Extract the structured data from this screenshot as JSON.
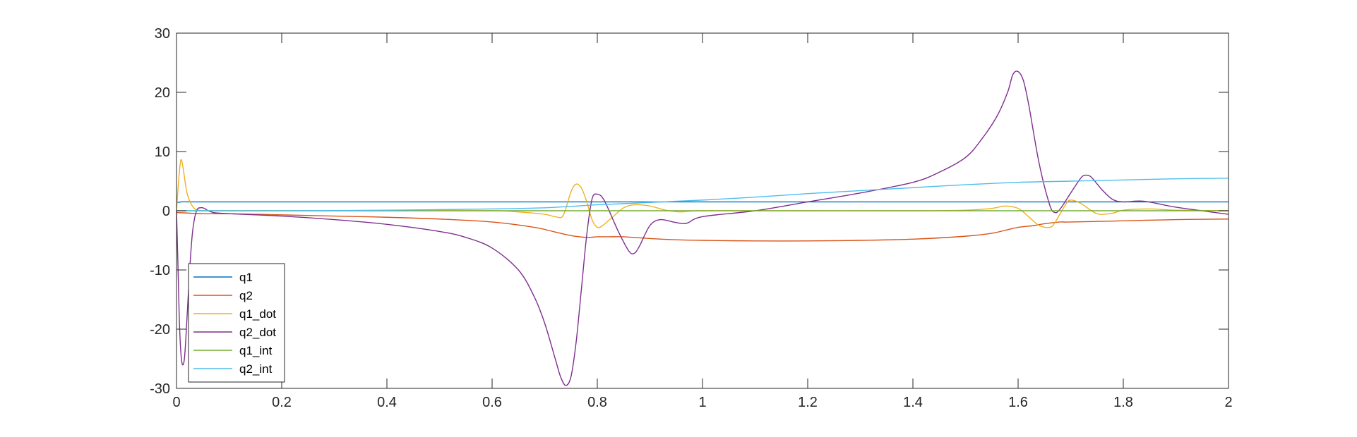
{
  "chart_data": {
    "type": "line",
    "title": "",
    "xlabel": "",
    "ylabel": "",
    "xlim": [
      0,
      2
    ],
    "ylim": [
      -30,
      30
    ],
    "x_ticks": [
      0,
      0.2,
      0.4,
      0.6,
      0.8,
      1,
      1.2,
      1.4,
      1.6,
      1.8,
      2
    ],
    "x_tick_labels": [
      "0",
      "0.2",
      "0.4",
      "0.6",
      "0.8",
      "1",
      "1.2",
      "1.4",
      "1.6",
      "1.8",
      "2"
    ],
    "y_ticks": [
      -30,
      -20,
      -10,
      0,
      10,
      20,
      30
    ],
    "y_tick_labels": [
      "-30",
      "-20",
      "-10",
      "0",
      "10",
      "20",
      "30"
    ],
    "grid": false,
    "box": true,
    "legend_position": "bottom-left",
    "series": [
      {
        "name": "q1",
        "color": "#0072BD",
        "x": [
          0,
          0.01,
          0.02,
          0.05,
          0.1,
          0.3,
          0.5,
          0.7,
          0.8,
          1.0,
          1.2,
          1.4,
          1.6,
          1.8,
          2.0
        ],
        "y": [
          1.4,
          1.5,
          1.5,
          1.5,
          1.5,
          1.5,
          1.5,
          1.5,
          1.5,
          1.5,
          1.5,
          1.5,
          1.5,
          1.5,
          1.5
        ]
      },
      {
        "name": "q2",
        "color": "#D95319",
        "x": [
          0,
          0.05,
          0.1,
          0.2,
          0.3,
          0.4,
          0.5,
          0.6,
          0.68,
          0.72,
          0.75,
          0.78,
          0.8,
          0.82,
          0.85,
          0.9,
          0.95,
          1.0,
          1.1,
          1.2,
          1.3,
          1.4,
          1.5,
          1.55,
          1.58,
          1.6,
          1.63,
          1.65,
          1.68,
          1.7,
          1.8,
          1.9,
          2.0
        ],
        "y": [
          -0.3,
          -0.5,
          -0.5,
          -0.7,
          -0.9,
          -1.1,
          -1.4,
          -1.9,
          -2.8,
          -3.6,
          -4.2,
          -4.5,
          -4.4,
          -4.4,
          -4.4,
          -4.7,
          -4.9,
          -5.0,
          -5.1,
          -5.1,
          -5.0,
          -4.8,
          -4.3,
          -3.8,
          -3.2,
          -2.8,
          -2.5,
          -2.2,
          -1.9,
          -1.9,
          -1.7,
          -1.5,
          -1.4
        ]
      },
      {
        "name": "q1_dot",
        "color": "#EDB120",
        "x": [
          0,
          0.004,
          0.008,
          0.012,
          0.02,
          0.03,
          0.04,
          0.05,
          0.07,
          0.1,
          0.2,
          0.4,
          0.6,
          0.65,
          0.7,
          0.72,
          0.735,
          0.75,
          0.76,
          0.77,
          0.78,
          0.79,
          0.8,
          0.81,
          0.83,
          0.85,
          0.87,
          0.9,
          0.93,
          0.96,
          1.0,
          1.2,
          1.4,
          1.5,
          1.55,
          1.575,
          1.6,
          1.62,
          1.64,
          1.66,
          1.67,
          1.69,
          1.7,
          1.72,
          1.75,
          1.78,
          1.8,
          1.85,
          1.9,
          2.0
        ],
        "y": [
          0,
          5.0,
          8.5,
          7.5,
          3.0,
          0.8,
          0.1,
          0,
          0,
          0,
          0,
          0,
          0,
          -0.2,
          -0.6,
          -1.0,
          -0.8,
          3.2,
          4.5,
          3.8,
          1.5,
          -1.5,
          -2.8,
          -2.5,
          -1.0,
          0.5,
          1.0,
          0.8,
          0.1,
          -0.2,
          0,
          0,
          0,
          0.1,
          0.4,
          0.8,
          0.4,
          -1.0,
          -2.5,
          -2.8,
          -2.0,
          1.0,
          1.8,
          1.2,
          -0.5,
          -0.4,
          0.1,
          0.3,
          0.1,
          0
        ]
      },
      {
        "name": "q2_dot",
        "color": "#7E2F8E",
        "x": [
          0,
          0.003,
          0.006,
          0.01,
          0.015,
          0.02,
          0.025,
          0.03,
          0.035,
          0.04,
          0.045,
          0.05,
          0.055,
          0.06,
          0.07,
          0.08,
          0.1,
          0.2,
          0.3,
          0.4,
          0.5,
          0.55,
          0.6,
          0.65,
          0.68,
          0.7,
          0.72,
          0.73,
          0.74,
          0.75,
          0.76,
          0.77,
          0.78,
          0.79,
          0.8,
          0.81,
          0.82,
          0.84,
          0.86,
          0.87,
          0.88,
          0.9,
          0.92,
          0.95,
          0.97,
          1.0,
          1.1,
          1.2,
          1.3,
          1.4,
          1.45,
          1.5,
          1.53,
          1.56,
          1.58,
          1.59,
          1.6,
          1.61,
          1.62,
          1.64,
          1.66,
          1.67,
          1.68,
          1.7,
          1.72,
          1.73,
          1.74,
          1.76,
          1.78,
          1.8,
          1.84,
          1.9,
          2.0
        ],
        "y": [
          0,
          -10,
          -20,
          -25.5,
          -25,
          -18,
          -10,
          -4,
          -1,
          0.3,
          0.5,
          0.5,
          0.3,
          0,
          -0.3,
          -0.4,
          -0.5,
          -0.9,
          -1.5,
          -2.3,
          -3.5,
          -4.5,
          -6.3,
          -10,
          -14.5,
          -19,
          -25,
          -28,
          -29.5,
          -28,
          -22,
          -13,
          -4,
          2.0,
          2.8,
          2.2,
          0.5,
          -3.5,
          -6.8,
          -7.2,
          -6.0,
          -2.5,
          -1.5,
          -2.0,
          -2.1,
          -1.0,
          0,
          1.5,
          3.0,
          4.8,
          6.5,
          9.0,
          12.0,
          16.0,
          20.0,
          23.0,
          23.5,
          22.0,
          18.0,
          8.0,
          1.0,
          -0.3,
          0.3,
          3.0,
          5.6,
          6.0,
          5.6,
          3.5,
          1.9,
          1.5,
          1.6,
          0.6,
          -0.6
        ]
      },
      {
        "name": "q1_int",
        "color": "#77AC30",
        "x": [
          0,
          0.2,
          0.5,
          1.0,
          1.5,
          2.0
        ],
        "y": [
          0,
          0,
          0,
          0,
          0,
          0
        ]
      },
      {
        "name": "q2_int",
        "color": "#4DBEEE",
        "x": [
          0,
          0.1,
          0.2,
          0.4,
          0.6,
          0.7,
          0.8,
          0.9,
          1.0,
          1.1,
          1.2,
          1.3,
          1.4,
          1.5,
          1.6,
          1.7,
          1.8,
          1.9,
          2.0
        ],
        "y": [
          0,
          0,
          0,
          0.1,
          0.3,
          0.5,
          1.0,
          1.4,
          1.8,
          2.3,
          2.9,
          3.4,
          3.9,
          4.4,
          4.8,
          5.0,
          5.2,
          5.4,
          5.5
        ]
      }
    ]
  }
}
